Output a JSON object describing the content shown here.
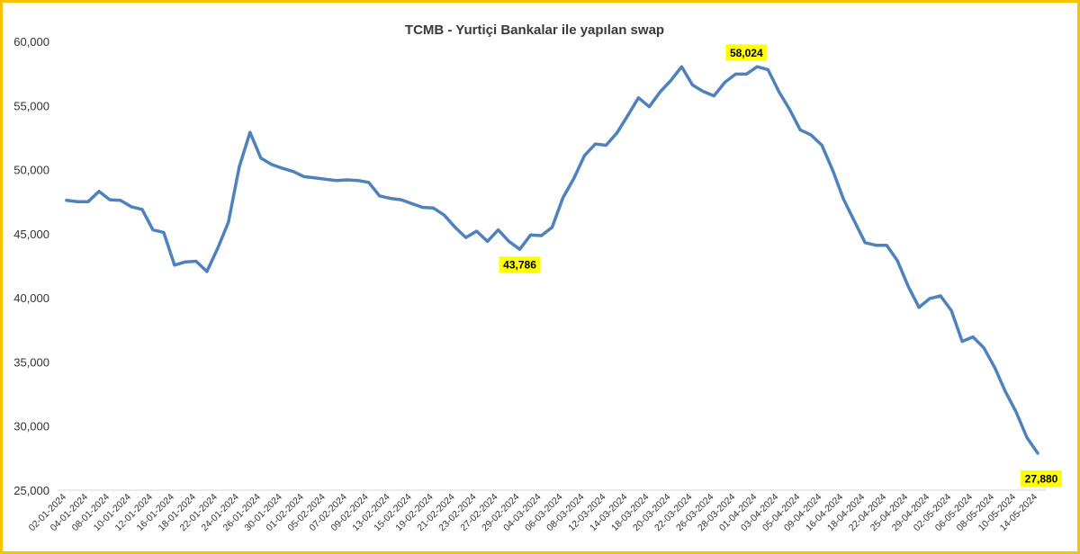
{
  "colors": {
    "frame_border": "#f5c400",
    "line": "#4f81bd",
    "callout_bg": "#ffff00",
    "axis": "#d9d9d9"
  },
  "chart_data": {
    "type": "line",
    "title": "TCMB - Yurtiçi Bankalar ile yapılan swap",
    "xlabel": "",
    "ylabel": "",
    "ylim": [
      25000,
      60000
    ],
    "yticks": [
      25000,
      30000,
      35000,
      40000,
      45000,
      50000,
      55000,
      60000
    ],
    "ytick_labels": [
      "25,000",
      "30,000",
      "35,000",
      "40,000",
      "45,000",
      "50,000",
      "55,000",
      "60,000"
    ],
    "grid": false,
    "legend": "none",
    "x_tick_labels": [
      "02-01-2024",
      "04-01-2024",
      "08-01-2024",
      "10-01-2024",
      "12-01-2024",
      "16-01-2024",
      "18-01-2024",
      "22-01-2024",
      "24-01-2024",
      "26-01-2024",
      "30-01-2024",
      "01-02-2024",
      "05-02-2024",
      "07-02-2024",
      "09-02-2024",
      "13-02-2024",
      "15-02-2024",
      "19-02-2024",
      "21-02-2024",
      "23-02-2024",
      "27-02-2024",
      "29-02-2024",
      "04-03-2024",
      "06-03-2024",
      "08-03-2024",
      "12-03-2024",
      "14-03-2024",
      "18-03-2024",
      "20-03-2024",
      "22-03-2024",
      "26-03-2024",
      "28-03-2024",
      "01-04-2024",
      "03-04-2024",
      "05-04-2024",
      "09-04-2024",
      "16-04-2024",
      "18-04-2024",
      "22-04-2024",
      "25-04-2024",
      "29-04-2024",
      "02-05-2024",
      "06-05-2024",
      "08-05-2024",
      "10-05-2024",
      "14-05-2024"
    ],
    "series": [
      {
        "values": [
          47600,
          47500,
          47500,
          48300,
          47650,
          47600,
          47100,
          46900,
          45300,
          45100,
          42550,
          42800,
          42850,
          42050,
          43850,
          45900,
          50200,
          52900,
          50900,
          50400,
          50100,
          49850,
          49450,
          49350,
          49250,
          49150,
          49200,
          49150,
          49000,
          47950,
          47750,
          47650,
          47350,
          47050,
          47000,
          46450,
          45500,
          44700,
          45200,
          44400,
          45300,
          44400,
          43786,
          44900,
          44850,
          45500,
          47800,
          49300,
          51100,
          52000,
          51900,
          52850,
          54200,
          55600,
          54900,
          56050,
          56950,
          58024,
          56600,
          56100,
          55750,
          56800,
          57450,
          57450,
          58024,
          57800,
          56100,
          54700,
          53100,
          52700,
          51900,
          49950,
          47700,
          46000,
          44300,
          44100,
          44100,
          42900,
          40900,
          39250,
          39950,
          40150,
          39000,
          36600,
          36950,
          36100,
          34600,
          32700,
          31100,
          29100,
          27880
        ]
      }
    ],
    "annotations": [
      {
        "label": "58,024"
      },
      {
        "label": "43,786"
      },
      {
        "label": "27,880"
      }
    ]
  }
}
